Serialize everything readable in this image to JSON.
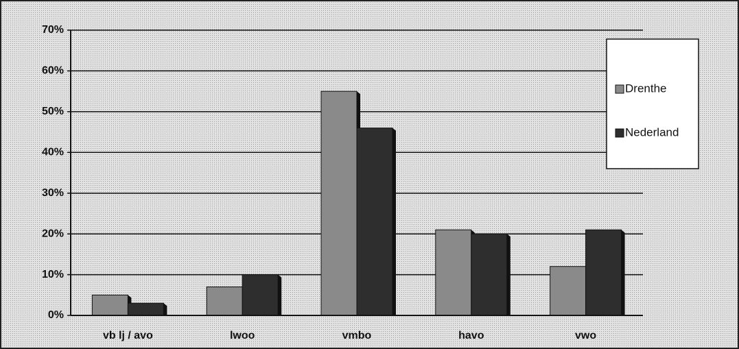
{
  "chart_data": {
    "type": "bar",
    "categories": [
      "vb lj / avo",
      "lwoo",
      "vmbo",
      "havo",
      "vwo"
    ],
    "series": [
      {
        "name": "Drenthe",
        "color": "#8a8a8a",
        "values": [
          5,
          7,
          55,
          21,
          12
        ]
      },
      {
        "name": "Nederland",
        "color": "#2e2e2e",
        "values": [
          3,
          10,
          46,
          20,
          21
        ]
      }
    ],
    "ylim": [
      0,
      70
    ],
    "yticks": [
      {
        "value": 0,
        "label": "0%"
      },
      {
        "value": 10,
        "label": "10%"
      },
      {
        "value": 20,
        "label": "20%"
      },
      {
        "value": 30,
        "label": "30%"
      },
      {
        "value": 40,
        "label": "40%"
      },
      {
        "value": 50,
        "label": "50%"
      },
      {
        "value": 60,
        "label": "60%"
      },
      {
        "value": 70,
        "label": "70%"
      }
    ],
    "grid": true,
    "legend": "right"
  }
}
